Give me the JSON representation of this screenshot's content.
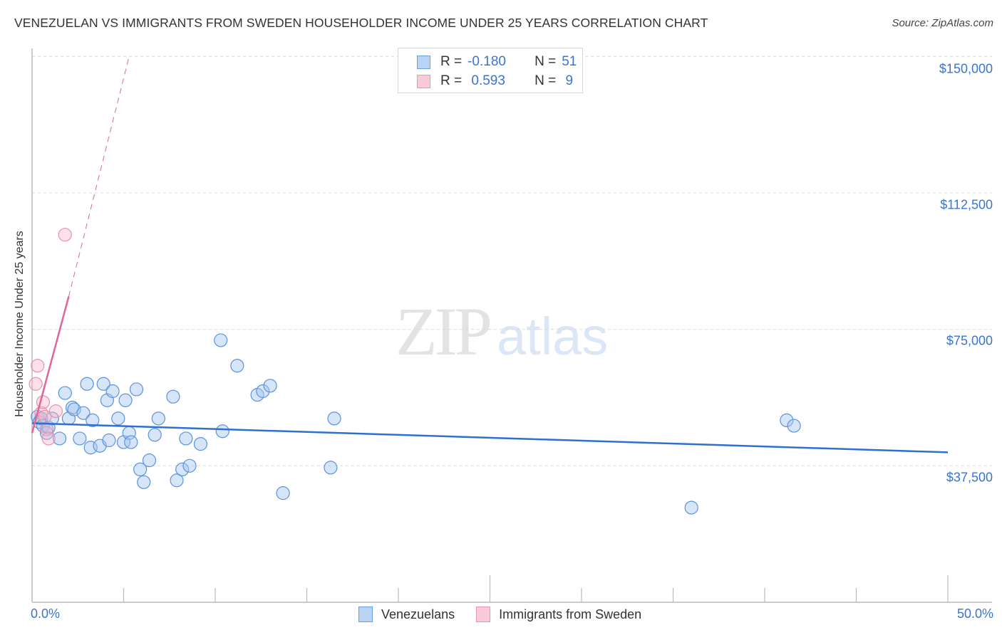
{
  "header": {
    "title": "VENEZUELAN VS IMMIGRANTS FROM SWEDEN HOUSEHOLDER INCOME UNDER 25 YEARS CORRELATION CHART",
    "source": "Source: ZipAtlas.com"
  },
  "watermark": {
    "zip": "ZIP",
    "atlas": "atlas"
  },
  "axes": {
    "ylabel": "Householder Income Under 25 years",
    "yticks": [
      "$150,000",
      "$112,500",
      "$75,000",
      "$37,500"
    ],
    "xticks": {
      "left": "0.0%",
      "right": "50.0%"
    }
  },
  "legend": {
    "rows": [
      {
        "r_label": "R =",
        "r_value": "-0.180",
        "n_label": "N =",
        "n_value": "51",
        "color": "#a9c8f0",
        "border": "#6a9ee0"
      },
      {
        "r_label": "R =",
        "r_value": " 0.593",
        "n_label": "N =",
        "n_value": " 9",
        "color": "#f9c3d3",
        "border": "#e996b0"
      }
    ]
  },
  "bottom_legend": {
    "items": [
      {
        "label": "Venezuelans",
        "color": "#b9d3f5",
        "border": "#6a9ee0"
      },
      {
        "label": "Immigrants from Sweden",
        "color": "#fbcad8",
        "border": "#e996b0"
      }
    ]
  },
  "colors": {
    "blue_fill": "rgba(164,198,240,0.45)",
    "blue_stroke": "#5b92dd",
    "blue_line": "#2f6fd0",
    "pink_fill": "rgba(248,180,200,0.40)",
    "pink_stroke": "#e891ad",
    "pink_line": "#e0659a",
    "grid": "#d9d9d9",
    "axis": "#bbbbbb",
    "tick_text": "#3a74d0"
  },
  "chart_data": {
    "type": "scatter",
    "title": "VENEZUELAN VS IMMIGRANTS FROM SWEDEN HOUSEHOLDER INCOME UNDER 25 YEARS CORRELATION CHART",
    "xlabel": "",
    "ylabel": "Householder Income Under 25 years",
    "xlim": [
      0,
      50
    ],
    "ylim": [
      0,
      152000
    ],
    "x_unit": "%",
    "y_ticks": [
      37500,
      75000,
      112500,
      150000
    ],
    "grid": true,
    "legend_position": "top-center",
    "series": [
      {
        "name": "Venezuelans",
        "R": -0.18,
        "N": 51,
        "trend": {
          "x": [
            0,
            50
          ],
          "y": [
            49200,
            41200
          ]
        },
        "points": [
          [
            0.3,
            51000
          ],
          [
            0.4,
            49500
          ],
          [
            0.5,
            50500
          ],
          [
            0.6,
            48500
          ],
          [
            0.8,
            46500
          ],
          [
            0.9,
            48000
          ],
          [
            1.1,
            50500
          ],
          [
            1.5,
            45000
          ],
          [
            1.8,
            57500
          ],
          [
            2.0,
            50500
          ],
          [
            2.2,
            53500
          ],
          [
            2.3,
            53000
          ],
          [
            2.6,
            45000
          ],
          [
            2.8,
            52000
          ],
          [
            3.0,
            60000
          ],
          [
            3.2,
            42500
          ],
          [
            3.3,
            50000
          ],
          [
            3.7,
            43000
          ],
          [
            3.9,
            60000
          ],
          [
            4.1,
            55500
          ],
          [
            4.2,
            44500
          ],
          [
            4.4,
            58000
          ],
          [
            4.7,
            50500
          ],
          [
            5.0,
            44000
          ],
          [
            5.1,
            55500
          ],
          [
            5.3,
            46500
          ],
          [
            5.4,
            44000
          ],
          [
            5.7,
            58500
          ],
          [
            5.9,
            36500
          ],
          [
            6.1,
            33000
          ],
          [
            6.4,
            39000
          ],
          [
            6.7,
            46000
          ],
          [
            6.9,
            50500
          ],
          [
            7.7,
            56500
          ],
          [
            7.9,
            33500
          ],
          [
            8.2,
            36500
          ],
          [
            8.4,
            45000
          ],
          [
            8.6,
            37500
          ],
          [
            9.2,
            43500
          ],
          [
            10.3,
            72000
          ],
          [
            10.4,
            47000
          ],
          [
            11.2,
            65000
          ],
          [
            12.3,
            57000
          ],
          [
            12.6,
            58000
          ],
          [
            13.0,
            59500
          ],
          [
            13.7,
            30000
          ],
          [
            16.3,
            37000
          ],
          [
            16.5,
            50500
          ],
          [
            36.0,
            26000
          ],
          [
            41.2,
            50000
          ],
          [
            41.6,
            48500
          ]
        ]
      },
      {
        "name": "Immigrants from Sweden",
        "R": 0.593,
        "N": 9,
        "trend": {
          "x": [
            0,
            2.0
          ],
          "y": [
            46500,
            84000
          ],
          "dashed_extension": {
            "x": [
              2.0,
              5.3
            ],
            "y": [
              84000,
              150000
            ]
          }
        },
        "points": [
          [
            0.2,
            60000
          ],
          [
            0.3,
            65000
          ],
          [
            0.5,
            52000
          ],
          [
            0.6,
            55000
          ],
          [
            0.7,
            51000
          ],
          [
            0.8,
            47500
          ],
          [
            0.9,
            45000
          ],
          [
            1.3,
            52500
          ],
          [
            1.8,
            101000
          ]
        ]
      }
    ]
  }
}
